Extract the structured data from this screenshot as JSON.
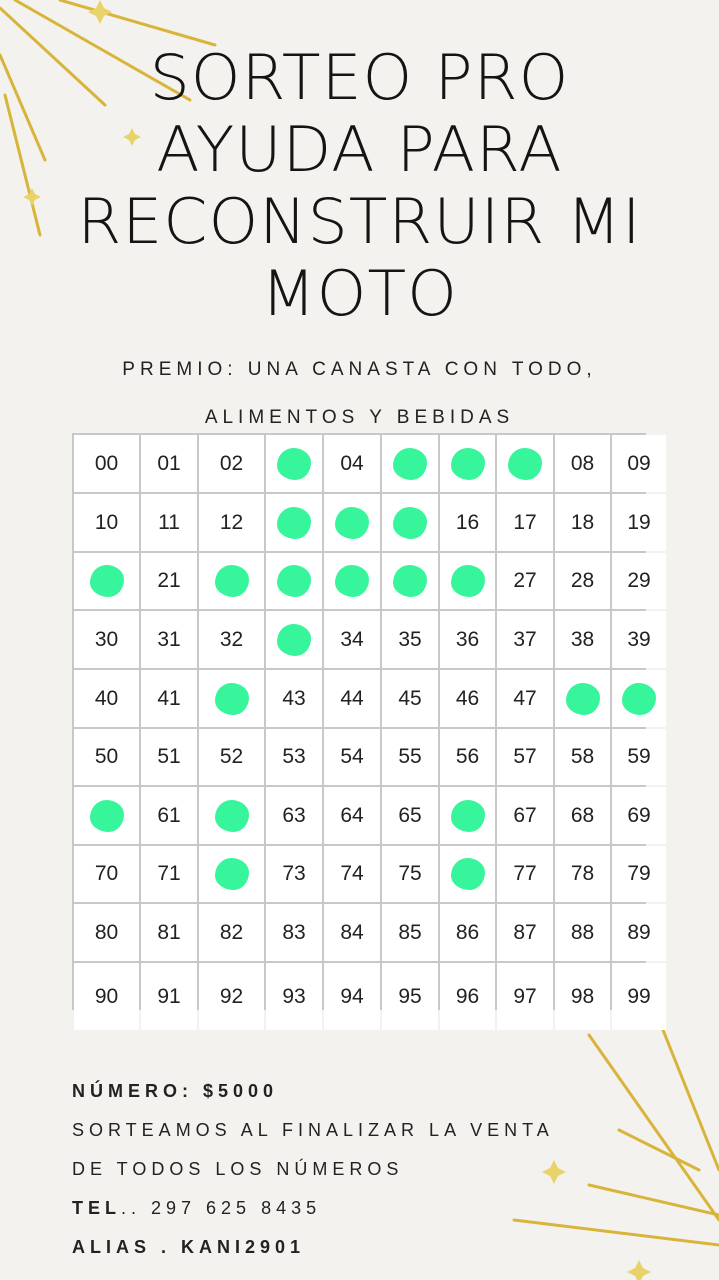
{
  "title_lines": [
    "SORTEO PRO",
    "AYUDA PARA",
    "RECONSTRUIR MI",
    "MOTO"
  ],
  "prize_lines": [
    "PREMIO: UNA CANASTA CON TODO,",
    "ALIMENTOS Y BEBIDAS"
  ],
  "numbers": [
    "00",
    "01",
    "02",
    "03",
    "04",
    "05",
    "06",
    "07",
    "08",
    "09",
    "10",
    "11",
    "12",
    "13",
    "14",
    "15",
    "16",
    "17",
    "18",
    "19",
    "20",
    "21",
    "22",
    "23",
    "24",
    "25",
    "26",
    "27",
    "28",
    "29",
    "30",
    "31",
    "32",
    "33",
    "34",
    "35",
    "36",
    "37",
    "38",
    "39",
    "40",
    "41",
    "42",
    "43",
    "44",
    "45",
    "46",
    "47",
    "48",
    "49",
    "50",
    "51",
    "52",
    "53",
    "54",
    "55",
    "56",
    "57",
    "58",
    "59",
    "60",
    "61",
    "62",
    "63",
    "64",
    "65",
    "66",
    "67",
    "68",
    "69",
    "70",
    "71",
    "72",
    "73",
    "74",
    "75",
    "76",
    "77",
    "78",
    "79",
    "80",
    "81",
    "82",
    "83",
    "84",
    "85",
    "86",
    "87",
    "88",
    "89",
    "90",
    "91",
    "92",
    "93",
    "94",
    "95",
    "96",
    "97",
    "98",
    "99"
  ],
  "taken_numbers": [
    "03",
    "05",
    "06",
    "07",
    "13",
    "14",
    "15",
    "20",
    "22",
    "23",
    "24",
    "25",
    "26",
    "33",
    "42",
    "48",
    "49",
    "60",
    "62",
    "66",
    "72",
    "76"
  ],
  "marker_color": "#36f59a",
  "accent_color": "#d8b43a",
  "info": {
    "price_label": "NÚMERO:",
    "price_value": "$5000",
    "draw_line1": "SORTEAMOS AL FINALIZAR LA VENTA",
    "draw_line2": "DE TODOS LOS NÚMEROS",
    "tel_label": "TEL",
    "tel_value": ".. 297 625 8435",
    "alias_label": "ALIAS . KANI2901"
  }
}
